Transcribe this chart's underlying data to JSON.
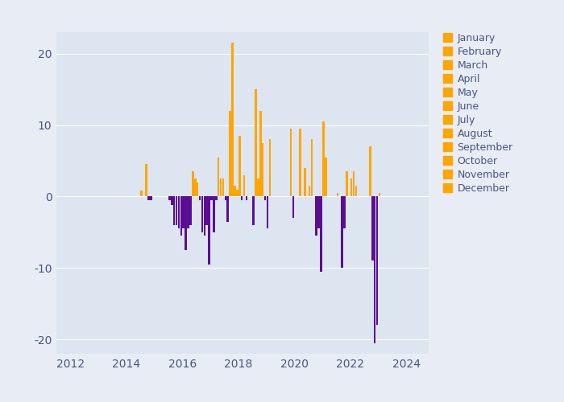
{
  "background_color": "#ffffff",
  "plot_bg_color": "#dce5f0",
  "outer_bg_color": "#e8edf5",
  "ylim": [
    -22,
    23
  ],
  "xlim": [
    2011.5,
    2024.8
  ],
  "xticks": [
    2012,
    2014,
    2016,
    2018,
    2020,
    2022,
    2024
  ],
  "yticks": [
    -20,
    -10,
    0,
    10,
    20
  ],
  "legend_months": [
    "January",
    "February",
    "March",
    "April",
    "May",
    "June",
    "July",
    "August",
    "September",
    "October",
    "November",
    "December"
  ],
  "orange_color": "#FFA500",
  "purple_color": "#5B0E91",
  "bar_width": 0.075,
  "records": [
    {
      "year": 2015,
      "month": 1,
      "value": 0.8
    },
    {
      "year": 2015,
      "month": 3,
      "value": 4.5
    },
    {
      "year": 2015,
      "month": 4,
      "value": -0.5
    },
    {
      "year": 2015,
      "month": 5,
      "value": -0.5
    },
    {
      "year": 2016,
      "month": 1,
      "value": -0.5
    },
    {
      "year": 2016,
      "month": 2,
      "value": -1.2
    },
    {
      "year": 2016,
      "month": 3,
      "value": -4.0
    },
    {
      "year": 2016,
      "month": 4,
      "value": -4.0
    },
    {
      "year": 2016,
      "month": 5,
      "value": -4.5
    },
    {
      "year": 2016,
      "month": 6,
      "value": -5.5
    },
    {
      "year": 2016,
      "month": 7,
      "value": -4.5
    },
    {
      "year": 2016,
      "month": 8,
      "value": -7.5
    },
    {
      "year": 2016,
      "month": 9,
      "value": -4.5
    },
    {
      "year": 2016,
      "month": 10,
      "value": -4.0
    },
    {
      "year": 2016,
      "month": 11,
      "value": 3.5
    },
    {
      "year": 2016,
      "month": 12,
      "value": 2.5
    },
    {
      "year": 2017,
      "month": 1,
      "value": 2.0
    },
    {
      "year": 2017,
      "month": 2,
      "value": -0.5
    },
    {
      "year": 2017,
      "month": 3,
      "value": -5.0
    },
    {
      "year": 2017,
      "month": 4,
      "value": -5.5
    },
    {
      "year": 2017,
      "month": 5,
      "value": -4.0
    },
    {
      "year": 2017,
      "month": 6,
      "value": -9.5
    },
    {
      "year": 2017,
      "month": 7,
      "value": -0.5
    },
    {
      "year": 2017,
      "month": 8,
      "value": -5.0
    },
    {
      "year": 2017,
      "month": 9,
      "value": -0.5
    },
    {
      "year": 2017,
      "month": 10,
      "value": 5.5
    },
    {
      "year": 2017,
      "month": 11,
      "value": 2.5
    },
    {
      "year": 2017,
      "month": 12,
      "value": 2.5
    },
    {
      "year": 2018,
      "month": 1,
      "value": -0.5
    },
    {
      "year": 2018,
      "month": 2,
      "value": -3.5
    },
    {
      "year": 2018,
      "month": 3,
      "value": 12.0
    },
    {
      "year": 2018,
      "month": 4,
      "value": 21.5
    },
    {
      "year": 2018,
      "month": 5,
      "value": 1.5
    },
    {
      "year": 2018,
      "month": 6,
      "value": 1.0
    },
    {
      "year": 2018,
      "month": 7,
      "value": 8.5
    },
    {
      "year": 2018,
      "month": 8,
      "value": -0.5
    },
    {
      "year": 2018,
      "month": 9,
      "value": 3.0
    },
    {
      "year": 2018,
      "month": 10,
      "value": -0.5
    },
    {
      "year": 2019,
      "month": 1,
      "value": -4.0
    },
    {
      "year": 2019,
      "month": 2,
      "value": 15.0
    },
    {
      "year": 2019,
      "month": 3,
      "value": 2.5
    },
    {
      "year": 2019,
      "month": 4,
      "value": 12.0
    },
    {
      "year": 2019,
      "month": 5,
      "value": 7.5
    },
    {
      "year": 2019,
      "month": 6,
      "value": -0.5
    },
    {
      "year": 2019,
      "month": 7,
      "value": -4.5
    },
    {
      "year": 2019,
      "month": 8,
      "value": 8.0
    },
    {
      "year": 2020,
      "month": 5,
      "value": 9.5
    },
    {
      "year": 2020,
      "month": 6,
      "value": -3.0
    },
    {
      "year": 2020,
      "month": 9,
      "value": 9.5
    },
    {
      "year": 2020,
      "month": 11,
      "value": 4.0
    },
    {
      "year": 2021,
      "month": 1,
      "value": 1.5
    },
    {
      "year": 2021,
      "month": 2,
      "value": 8.0
    },
    {
      "year": 2021,
      "month": 4,
      "value": -5.5
    },
    {
      "year": 2021,
      "month": 5,
      "value": -4.5
    },
    {
      "year": 2021,
      "month": 6,
      "value": -10.5
    },
    {
      "year": 2021,
      "month": 7,
      "value": 10.5
    },
    {
      "year": 2021,
      "month": 8,
      "value": 5.5
    },
    {
      "year": 2022,
      "month": 1,
      "value": 0.5
    },
    {
      "year": 2022,
      "month": 3,
      "value": -10.0
    },
    {
      "year": 2022,
      "month": 4,
      "value": -4.5
    },
    {
      "year": 2022,
      "month": 5,
      "value": 3.5
    },
    {
      "year": 2022,
      "month": 7,
      "value": 2.5
    },
    {
      "year": 2022,
      "month": 8,
      "value": 3.5
    },
    {
      "year": 2022,
      "month": 9,
      "value": 1.5
    },
    {
      "year": 2023,
      "month": 3,
      "value": 7.0
    },
    {
      "year": 2023,
      "month": 4,
      "value": -9.0
    },
    {
      "year": 2023,
      "month": 5,
      "value": -20.5
    },
    {
      "year": 2023,
      "month": 6,
      "value": -18.0
    },
    {
      "year": 2023,
      "month": 7,
      "value": 0.5
    }
  ]
}
